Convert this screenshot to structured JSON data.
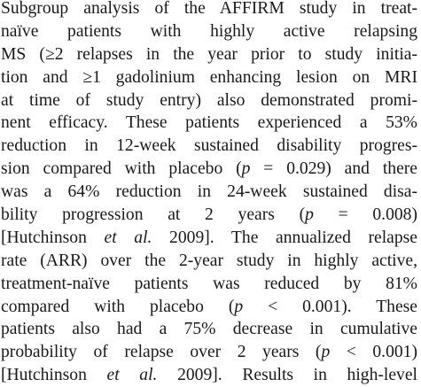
{
  "paragraph": {
    "lines": [
      [
        "Subgroup analysis of the AFFIRM study in treat-"
      ],
      [
        "naïve patients with highly active relapsing"
      ],
      [
        "MS (≥2 relapses in the year prior to study initia-"
      ],
      [
        "tion and ≥1 gadolinium enhancing lesion on MRI"
      ],
      [
        "at time of study entry) also demonstrated promi-"
      ],
      [
        "nent efficacy. These patients experienced a 53%"
      ],
      [
        "reduction in 12-week sustained disability progres-"
      ],
      [
        "sion compared with placebo (",
        {
          "text": "p",
          "style": "italic"
        },
        " = 0.029) and there"
      ],
      [
        "was a 64% reduction in 24-week sustained disa-"
      ],
      [
        "bility progression at 2 years (",
        {
          "text": "p",
          "style": "italic"
        },
        " = 0.008)"
      ],
      [
        "[Hutchinson ",
        {
          "text": "et al.",
          "style": "italic"
        },
        " 2009]. The annualized relapse"
      ],
      [
        "rate (ARR) over the 2-year study in highly active,"
      ],
      [
        "treatment-naïve patients was reduced by 81%"
      ],
      [
        "compared with placebo (",
        {
          "text": "p",
          "style": "italic"
        },
        " < 0.001). These"
      ],
      [
        "patients also had a 75% decrease in cumulative"
      ],
      [
        "probability of relapse over 2 years (",
        {
          "text": "p",
          "style": "italic"
        },
        " < 0.001)"
      ],
      [
        "[Hutchinson ",
        {
          "text": "et al.",
          "style": "italic"
        },
        " 2009]. Results in high-level"
      ]
    ]
  }
}
